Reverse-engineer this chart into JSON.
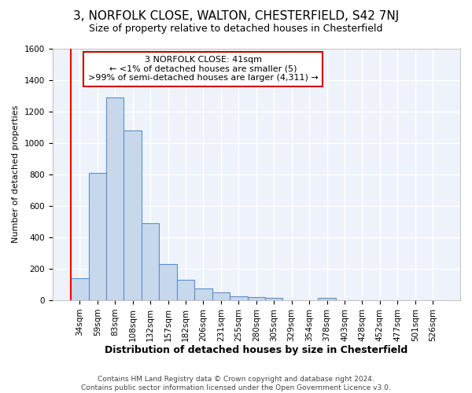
{
  "title_line1": "3, NORFOLK CLOSE, WALTON, CHESTERFIELD, S42 7NJ",
  "title_line2": "Size of property relative to detached houses in Chesterfield",
  "xlabel": "Distribution of detached houses by size in Chesterfield",
  "ylabel": "Number of detached properties",
  "bar_color": "#c8d8ec",
  "bar_edge_color": "#5b8fc9",
  "categories": [
    "34sqm",
    "59sqm",
    "83sqm",
    "108sqm",
    "132sqm",
    "157sqm",
    "182sqm",
    "206sqm",
    "231sqm",
    "255sqm",
    "280sqm",
    "305sqm",
    "329sqm",
    "354sqm",
    "378sqm",
    "403sqm",
    "428sqm",
    "452sqm",
    "477sqm",
    "501sqm",
    "526sqm"
  ],
  "values": [
    140,
    810,
    1290,
    1080,
    490,
    230,
    130,
    75,
    50,
    25,
    20,
    15,
    0,
    0,
    15,
    0,
    0,
    0,
    0,
    0,
    0
  ],
  "ylim": [
    0,
    1600
  ],
  "yticks": [
    0,
    200,
    400,
    600,
    800,
    1000,
    1200,
    1400,
    1600
  ],
  "annotation_text": "3 NORFOLK CLOSE: 41sqm\n← <1% of detached houses are smaller (5)\n>99% of semi-detached houses are larger (4,311) →",
  "annotation_box_color": "#ffffff",
  "annotation_border_color": "#cc0000",
  "footnote": "Contains HM Land Registry data © Crown copyright and database right 2024.\nContains public sector information licensed under the Open Government Licence v3.0.",
  "background_color": "#eef2fa",
  "grid_color": "#ffffff",
  "title1_fontsize": 11,
  "title2_fontsize": 9,
  "ylabel_fontsize": 8,
  "xlabel_fontsize": 9,
  "tick_fontsize": 7.5,
  "annotation_fontsize": 8,
  "footnote_fontsize": 6.5
}
